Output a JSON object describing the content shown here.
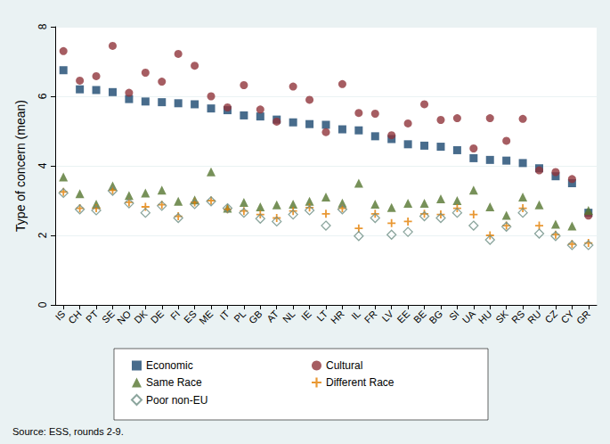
{
  "chart_data": {
    "type": "scatter",
    "y_label": "Type of concern (mean)",
    "note": "Source: ESS, rounds 2-9.",
    "categories": [
      "IS",
      "CH",
      "PT",
      "SE",
      "NO",
      "DK",
      "DE",
      "FI",
      "ES",
      "ME",
      "IT",
      "PL",
      "GB",
      "AT",
      "NL",
      "IE",
      "LT",
      "HR",
      "IL",
      "FR",
      "LV",
      "EE",
      "BE",
      "BG",
      "SI",
      "UA",
      "HU",
      "SK",
      "RS",
      "RU",
      "CZ",
      "CY",
      "GR"
    ],
    "ylim": [
      0,
      8
    ],
    "yticks": [
      0,
      2,
      4,
      6,
      8
    ],
    "grid": true,
    "legend": "bottom",
    "series": [
      {
        "name": "Economic",
        "color": "#1a476f",
        "marker": "square",
        "values": [
          6.75,
          6.2,
          6.18,
          6.12,
          5.92,
          5.85,
          5.83,
          5.8,
          5.77,
          5.65,
          5.6,
          5.45,
          5.42,
          5.33,
          5.25,
          5.2,
          5.18,
          5.05,
          5.02,
          4.85,
          4.77,
          4.62,
          4.58,
          4.55,
          4.45,
          4.22,
          4.17,
          4.15,
          4.08,
          3.93,
          3.7,
          3.5,
          2.65
        ]
      },
      {
        "name": "Cultural",
        "color": "#90353b",
        "marker": "circle",
        "values": [
          7.3,
          6.45,
          6.58,
          7.45,
          6.1,
          6.68,
          6.42,
          7.22,
          6.88,
          6.0,
          5.68,
          6.32,
          5.62,
          5.27,
          6.28,
          5.9,
          4.97,
          6.35,
          5.52,
          5.5,
          4.88,
          5.22,
          5.77,
          5.32,
          5.37,
          4.5,
          5.37,
          4.72,
          5.35,
          3.87,
          3.82,
          3.62,
          2.57
        ]
      },
      {
        "name": "Same Race",
        "color": "#55752f",
        "marker": "triangle",
        "values": [
          3.68,
          3.2,
          2.9,
          3.42,
          3.15,
          3.22,
          3.3,
          2.98,
          3.02,
          3.83,
          2.78,
          2.95,
          2.82,
          2.88,
          2.9,
          2.98,
          3.1,
          2.93,
          3.5,
          2.9,
          2.8,
          2.92,
          2.92,
          3.05,
          3.0,
          3.3,
          2.82,
          2.58,
          3.1,
          2.88,
          2.32,
          2.27,
          2.72
        ]
      },
      {
        "name": "Different Race",
        "color": "#e37e00",
        "marker": "plus",
        "values": [
          3.25,
          2.78,
          2.78,
          3.3,
          2.95,
          2.82,
          2.88,
          2.55,
          2.95,
          3.0,
          2.75,
          2.7,
          2.6,
          2.5,
          2.7,
          2.8,
          2.62,
          2.78,
          2.2,
          2.62,
          2.35,
          2.4,
          2.62,
          2.6,
          2.78,
          2.6,
          2.0,
          2.28,
          2.78,
          2.28,
          2.02,
          1.75,
          1.78
        ]
      },
      {
        "name": "Poor non-EU",
        "color": "#6e8e84",
        "marker": "hollow_diamond",
        "values": [
          3.22,
          2.75,
          2.72,
          3.28,
          2.92,
          2.65,
          2.85,
          2.5,
          2.9,
          2.98,
          2.78,
          2.65,
          2.48,
          2.4,
          2.6,
          2.72,
          2.28,
          2.75,
          1.98,
          2.5,
          2.02,
          2.1,
          2.55,
          2.5,
          2.65,
          2.28,
          1.87,
          2.25,
          2.65,
          2.05,
          1.98,
          1.72,
          1.72
        ]
      }
    ]
  }
}
